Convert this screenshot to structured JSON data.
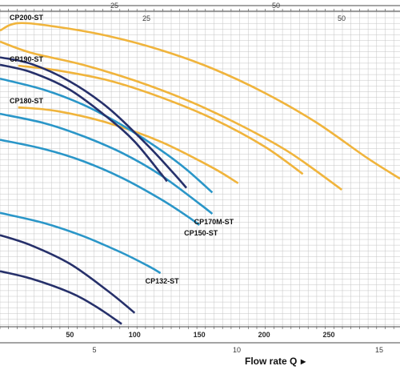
{
  "chart_data": {
    "type": "line",
    "xlabel": "Flow rate Q",
    "xlabel_arrow": "▸",
    "main_axis": {
      "label_values": [
        50,
        100,
        150,
        200,
        250
      ],
      "labels": [
        "50",
        "100",
        "150",
        "200",
        "250"
      ],
      "xlim": [
        -4,
        305
      ]
    },
    "top_axis_1": {
      "labels": [
        "25",
        "50"
      ],
      "values": [
        25,
        50
      ]
    },
    "top_axis_2": {
      "labels": [
        "25",
        "50"
      ],
      "values": [
        25,
        50
      ]
    },
    "bottom_axis_2": {
      "labels": [
        "5",
        "10",
        "15"
      ],
      "values": [
        5,
        10,
        15
      ]
    },
    "grid": true,
    "colors": {
      "orange": "#f0b43c",
      "blue": "#2a96c8",
      "navy": "#26306a",
      "grid": "#c4c4c4"
    },
    "series": [
      {
        "name": "CP200-ST",
        "color": "orange",
        "label_at": 0,
        "points": [
          [
            -4,
            420
          ],
          [
            10,
            428
          ],
          [
            40,
            424
          ],
          [
            80,
            414
          ],
          [
            120,
            399
          ],
          [
            160,
            379
          ],
          [
            200,
            353
          ],
          [
            240,
            321
          ],
          [
            280,
            282
          ],
          [
            305,
            260
          ]
        ]
      },
      {
        "name": "",
        "color": "orange",
        "points": [
          [
            -4,
            408
          ],
          [
            20,
            396
          ],
          [
            60,
            383
          ],
          [
            100,
            366
          ],
          [
            140,
            345
          ],
          [
            180,
            319
          ],
          [
            220,
            288
          ],
          [
            260,
            248
          ]
        ]
      },
      {
        "name": "CP190-ST",
        "color": "orange",
        "label_at": 0,
        "points": [
          [
            10,
            382
          ],
          [
            40,
            377
          ],
          [
            80,
            366
          ],
          [
            120,
            348
          ],
          [
            160,
            325
          ],
          [
            200,
            295
          ],
          [
            230,
            265
          ]
        ]
      },
      {
        "name": "CP180-ST",
        "color": "orange",
        "label_at": 0,
        "points": [
          [
            10,
            337
          ],
          [
            40,
            333
          ],
          [
            80,
            320
          ],
          [
            120,
            300
          ],
          [
            160,
            272
          ],
          [
            180,
            255
          ]
        ]
      },
      {
        "name": "",
        "color": "blue",
        "points": [
          [
            -4,
            368
          ],
          [
            30,
            356
          ],
          [
            60,
            340
          ],
          [
            90,
            318
          ],
          [
            120,
            291
          ],
          [
            140,
            270
          ],
          [
            160,
            245
          ]
        ]
      },
      {
        "name": "CP170M-ST",
        "color": "blue",
        "points": [
          [
            -4,
            330
          ],
          [
            30,
            320
          ],
          [
            60,
            306
          ],
          [
            90,
            288
          ],
          [
            120,
            264
          ],
          [
            150,
            233
          ],
          [
            160,
            222
          ]
        ]
      },
      {
        "name": "CP150-ST",
        "color": "blue",
        "points": [
          [
            -4,
            302
          ],
          [
            30,
            292
          ],
          [
            60,
            279
          ],
          [
            90,
            261
          ],
          [
            120,
            238
          ],
          [
            140,
            220
          ],
          [
            150,
            210
          ]
        ]
      },
      {
        "name": "CP132-ST",
        "color": "blue",
        "points": [
          [
            -4,
            223
          ],
          [
            30,
            212
          ],
          [
            60,
            198
          ],
          [
            90,
            180
          ],
          [
            110,
            166
          ],
          [
            120,
            158
          ]
        ]
      },
      {
        "name": "",
        "color": "navy",
        "points": [
          [
            -4,
            391
          ],
          [
            20,
            384
          ],
          [
            50,
            365
          ],
          [
            80,
            336
          ],
          [
            110,
            296
          ],
          [
            130,
            266
          ],
          [
            140,
            250
          ]
        ]
      },
      {
        "name": "",
        "color": "navy",
        "points": [
          [
            -4,
            383
          ],
          [
            20,
            375
          ],
          [
            50,
            356
          ],
          [
            80,
            325
          ],
          [
            100,
            300
          ],
          [
            120,
            266
          ],
          [
            125,
            257
          ]
        ]
      },
      {
        "name": "",
        "color": "navy",
        "points": [
          [
            -4,
            199
          ],
          [
            20,
            188
          ],
          [
            50,
            168
          ],
          [
            80,
            138
          ],
          [
            100,
            115
          ]
        ]
      },
      {
        "name": "",
        "color": "navy",
        "points": [
          [
            -4,
            160
          ],
          [
            20,
            152
          ],
          [
            50,
            137
          ],
          [
            70,
            122
          ],
          [
            90,
            103
          ]
        ]
      }
    ]
  }
}
